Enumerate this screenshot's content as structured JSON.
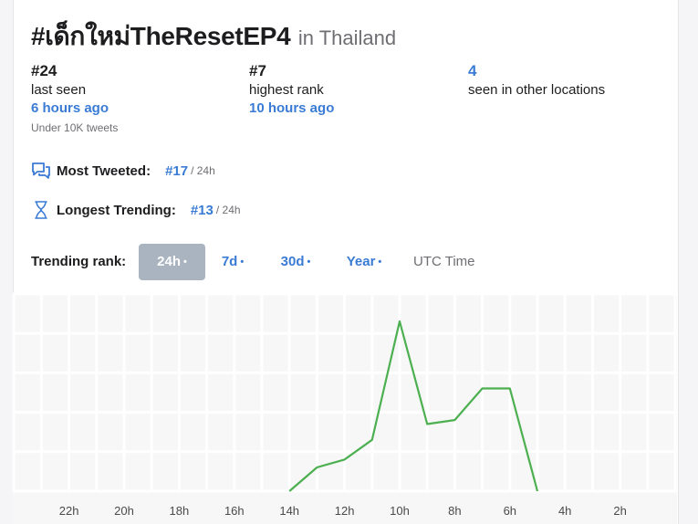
{
  "header": {
    "hashtag": "#เด็กใหม่TheResetEP4",
    "location": "in Thailand"
  },
  "stats": {
    "last_seen": {
      "value": "#24",
      "label": "last seen",
      "ago": "6 hours ago",
      "tweets": "Under 10K tweets"
    },
    "highest_rank": {
      "value": "#7",
      "label": "highest rank",
      "ago": "10 hours ago"
    },
    "other_locations": {
      "value": "4",
      "label": "seen in other locations"
    }
  },
  "metrics": {
    "most_tweeted": {
      "label": "Most Tweeted:",
      "rank": "#17",
      "period": "/ 24h",
      "icon": "chat-bubbles-icon"
    },
    "longest_trending": {
      "label": "Longest Trending:",
      "rank": "#13",
      "period": "/ 24h",
      "icon": "hourglass-icon"
    }
  },
  "trending": {
    "label": "Trending rank:",
    "tabs": [
      {
        "label": "24h",
        "active": true
      },
      {
        "label": "7d",
        "active": false
      },
      {
        "label": "30d",
        "active": false
      },
      {
        "label": "Year",
        "active": false
      }
    ],
    "dot": "•",
    "utc": "UTC Time"
  },
  "colors": {
    "accent": "#3a7bd5",
    "line": "#4caf50",
    "active_tab": "#a9b4c0"
  },
  "chart_data": {
    "type": "line",
    "x_ticks": [
      "22h",
      "20h",
      "18h",
      "16h",
      "14h",
      "12h",
      "10h",
      "8h",
      "6h",
      "4h",
      "2h"
    ],
    "x_hours_ago": [
      14,
      13,
      12,
      11,
      10,
      9,
      8,
      7,
      6,
      5
    ],
    "rank": [
      50,
      44,
      42,
      37,
      7,
      33,
      32,
      24,
      24,
      50
    ],
    "y_reversed": true,
    "grid": true
  }
}
